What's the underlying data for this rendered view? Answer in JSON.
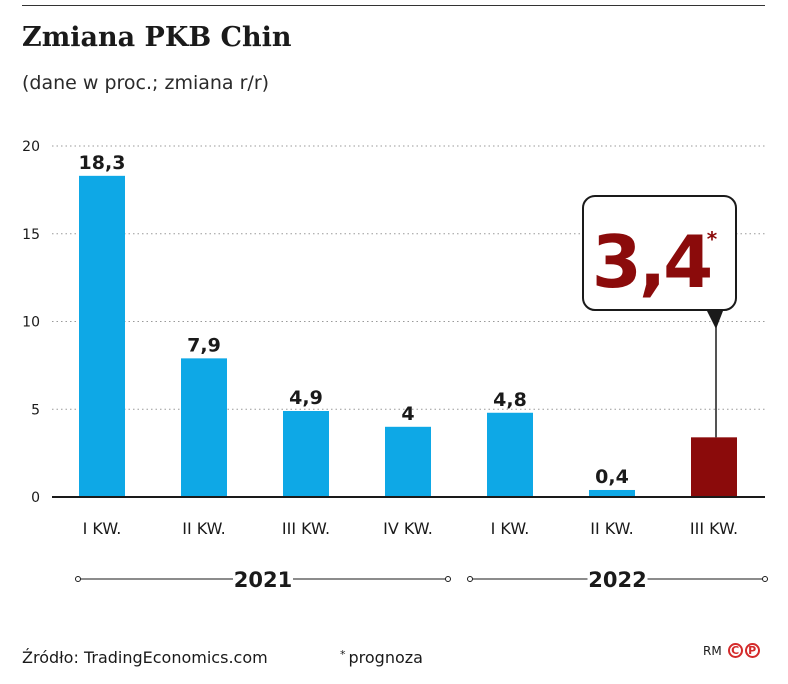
{
  "header": {
    "title": "Zmiana PKB Chin",
    "subtitle": "(dane w proc.; zmiana r/r)"
  },
  "chart_data": {
    "type": "bar",
    "title": "Zmiana PKB Chin",
    "subtitle": "(dane w proc.; zmiana r/r)",
    "xlabel": "",
    "ylabel": "",
    "ylim": [
      0,
      20
    ],
    "yticks": [
      "0",
      "5",
      "10",
      "15",
      "20"
    ],
    "grid": true,
    "categories": [
      "I KW.",
      "II KW.",
      "III KW.",
      "IV KW.",
      "I KW.",
      "II KW.",
      "III KW."
    ],
    "values": [
      18.3,
      7.9,
      4.9,
      4,
      4.8,
      0.4,
      3.4
    ],
    "labels": [
      "18,3",
      "7,9",
      "4,9",
      "4",
      "4,8",
      "0,4",
      ""
    ],
    "year_groups": [
      {
        "label": "2021",
        "from": 0,
        "to": 3
      },
      {
        "label": "2022",
        "from": 4,
        "to": 6
      }
    ],
    "colors": {
      "actual": "#0ea8e6",
      "forecast": "#8b0b0b"
    },
    "forecast_index": 6,
    "callout": {
      "value": "3,4",
      "marker": "*"
    }
  },
  "footer": {
    "source": "Źródło: TradingEconomics.com",
    "note_marker": "*",
    "note": "prognoza",
    "author": "RM",
    "badge_c": "C",
    "badge_p": "P"
  }
}
